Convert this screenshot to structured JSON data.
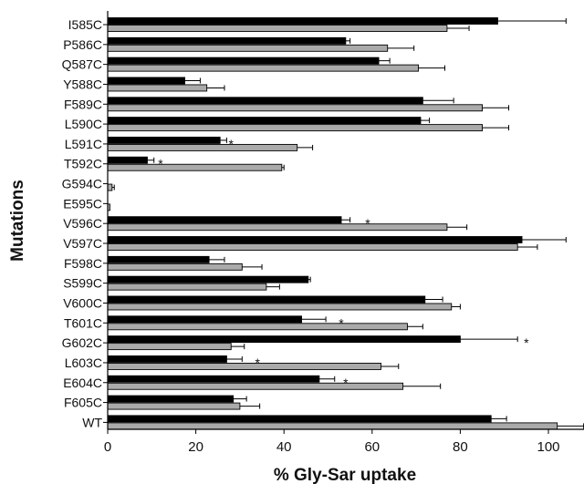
{
  "chart_data": {
    "type": "bar",
    "orientation": "horizontal",
    "xlabel": "% Gly-Sar uptake",
    "ylabel": "Mutations",
    "xlim": [
      0,
      108
    ],
    "xticks": [
      0,
      20,
      40,
      60,
      80,
      100
    ],
    "xtick_labels": [
      "0",
      "20",
      "40",
      "60",
      "80",
      "100"
    ],
    "grid": false,
    "legend": "none",
    "categories": [
      "I585C",
      "P586C",
      "Q587C",
      "Y588C",
      "F589C",
      "L590C",
      "L591C",
      "T592C",
      "G594C",
      "E595C",
      "V596C",
      "V597C",
      "F598C",
      "S599C",
      "V600C",
      "T601C",
      "G602C",
      "L603C",
      "E604C",
      "F605C",
      "WT"
    ],
    "series": [
      {
        "color": "#000000",
        "values": [
          88.5,
          54,
          61.5,
          17.5,
          71.5,
          71,
          25.5,
          9,
          0,
          0,
          53,
          94,
          23,
          45.5,
          72,
          44,
          80,
          27,
          48,
          28.5,
          87
        ],
        "errors": [
          15.5,
          1,
          2.5,
          3.5,
          7,
          2,
          1.5,
          1.5,
          0,
          0,
          2,
          10,
          3.5,
          0.5,
          4,
          5.5,
          13,
          3.5,
          3.5,
          3,
          3.5
        ]
      },
      {
        "color": "#aaaaaa",
        "values": [
          77,
          63.5,
          70.5,
          22.5,
          85,
          85,
          43,
          39.5,
          1,
          0.5,
          77,
          93,
          30.5,
          36,
          78,
          68,
          28,
          62,
          67,
          30,
          102
        ],
        "errors": [
          5,
          6,
          6,
          4,
          6,
          6,
          3.5,
          0.5,
          0.5,
          0,
          4.5,
          4.5,
          4.5,
          3,
          2,
          3.5,
          3,
          4,
          8.5,
          4.5,
          6
        ]
      }
    ],
    "annotations": [
      {
        "category": "L591C",
        "value": 28,
        "text": "*"
      },
      {
        "category": "T592C",
        "value": 12,
        "text": "*"
      },
      {
        "category": "V596C",
        "value": 59,
        "text": "*"
      },
      {
        "category": "T601C",
        "value": 53,
        "text": "*"
      },
      {
        "category": "G602C",
        "value": 95,
        "text": "*"
      },
      {
        "category": "L603C",
        "value": 34,
        "text": "*"
      },
      {
        "category": "E604C",
        "value": 54,
        "text": "*"
      }
    ]
  }
}
